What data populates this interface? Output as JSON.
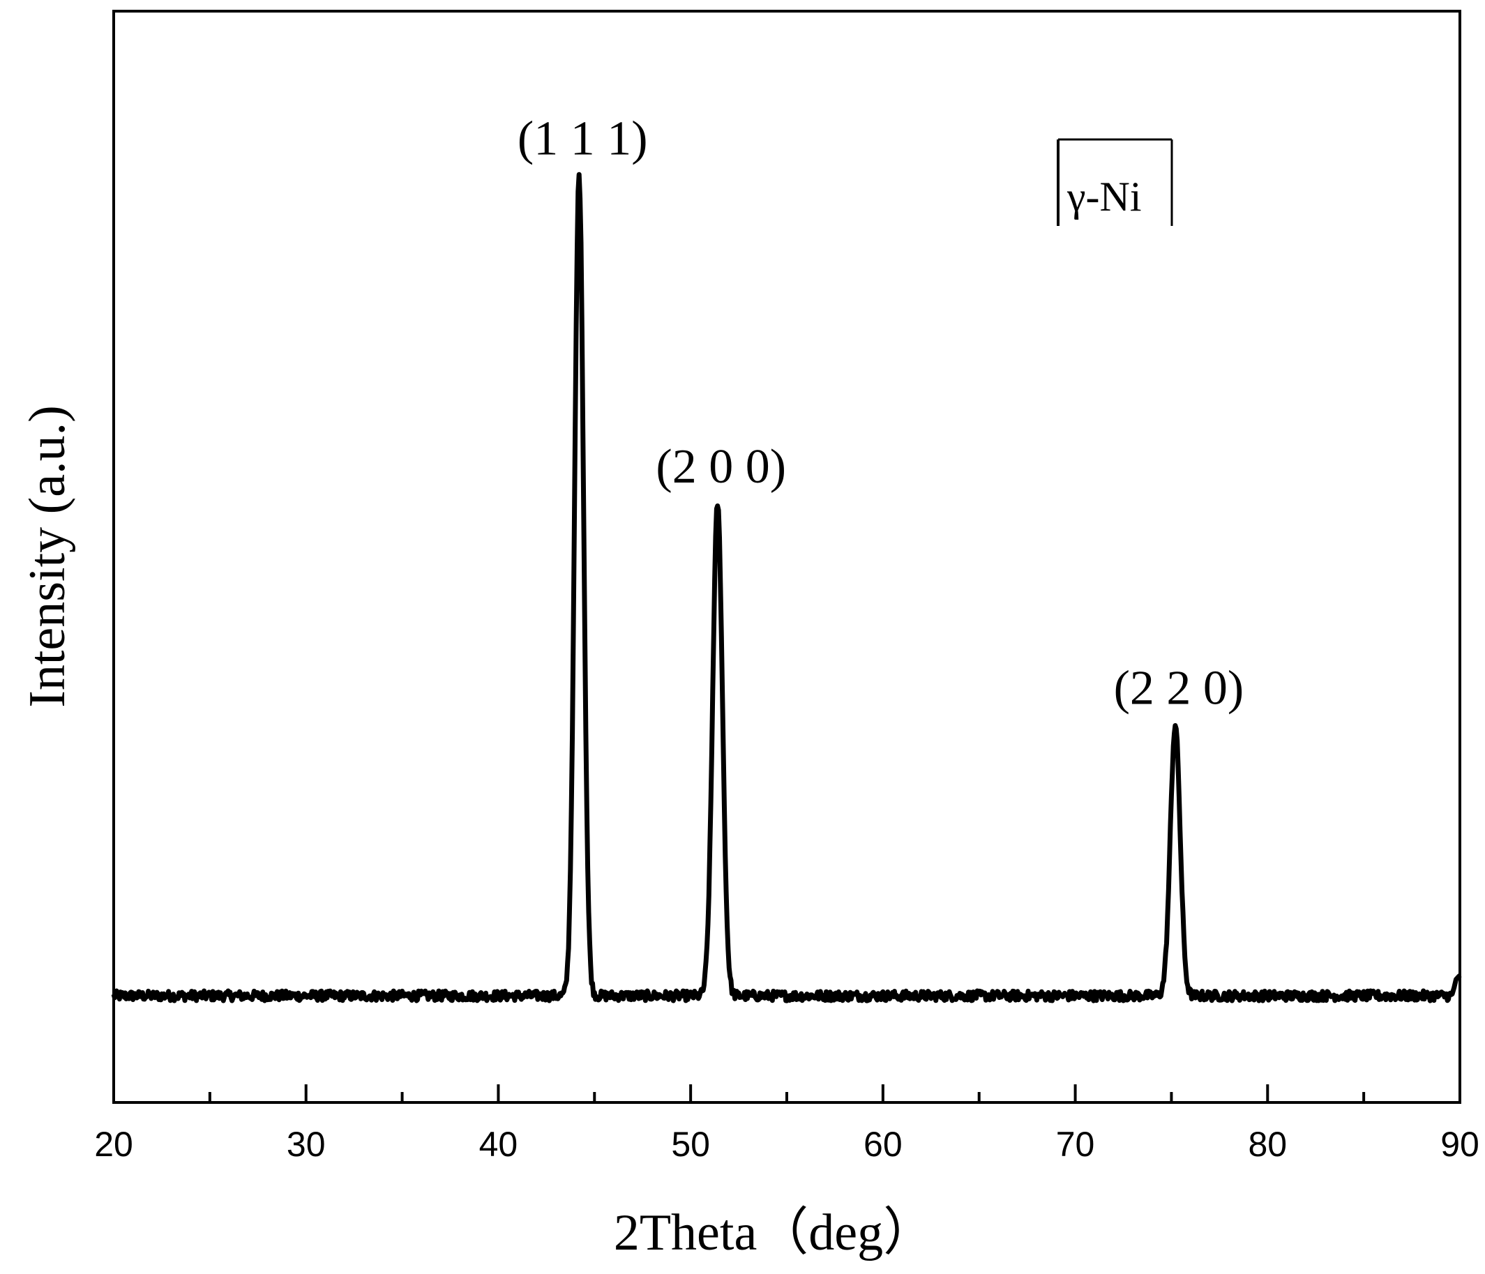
{
  "chart_data": {
    "type": "line",
    "xlabel": "2Theta（deg）",
    "ylabel": "Intensity (a.u.)",
    "xlim": [
      20,
      90
    ],
    "ylim": [
      -0.13,
      1.2
    ],
    "x_ticks_major": [
      20,
      30,
      40,
      50,
      60,
      70,
      80,
      90
    ],
    "x_tick_labels": [
      "20",
      "30",
      "40",
      "50",
      "60",
      "70",
      "80",
      "90"
    ],
    "x_ticks_minor": [
      25,
      35,
      45,
      55,
      65,
      75,
      85
    ],
    "y_ticks": false,
    "grid": false,
    "legend": {
      "label": "γ-Ni",
      "position": "top-right"
    },
    "baseline": 0.0,
    "peaks": [
      {
        "label": "(1 1 1)",
        "x": 44.2,
        "intensity": 1.0,
        "fwhm": 0.55
      },
      {
        "label": "(2 0 0)",
        "x": 51.4,
        "intensity": 0.6,
        "fwhm": 0.6
      },
      {
        "label": "(2 2 0)",
        "x": 75.2,
        "intensity": 0.33,
        "fwhm": 0.6
      }
    ],
    "series": [
      {
        "color": "#000000"
      }
    ]
  }
}
